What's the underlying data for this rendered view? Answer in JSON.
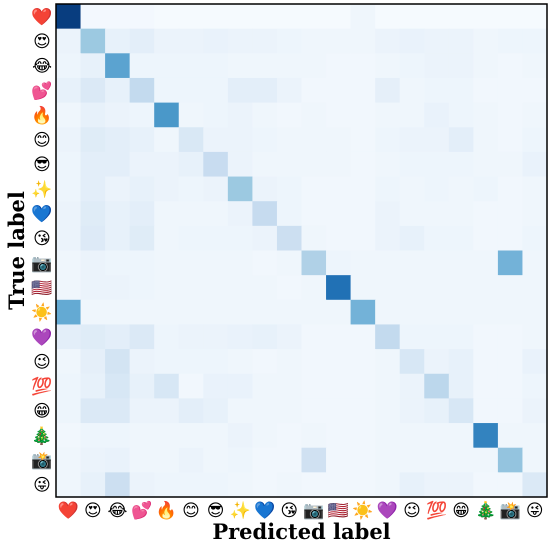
{
  "chart_data": {
    "type": "heatmap",
    "title": "",
    "xlabel": "Predicted label",
    "ylabel": "True label",
    "x_categories": [
      "❤️",
      "😍",
      "😂",
      "💕",
      "🔥",
      "😊",
      "😎",
      "✨",
      "💙",
      "😘",
      "📷",
      "🇺🇸",
      "☀️",
      "💜",
      "😉",
      "💯",
      "😁",
      "🎄",
      "📸",
      "😜"
    ],
    "y_categories": [
      "❤️",
      "😍",
      "😂",
      "💕",
      "🔥",
      "😊",
      "😎",
      "✨",
      "💙",
      "😘",
      "📷",
      "🇺🇸",
      "☀️",
      "💜",
      "😉",
      "💯",
      "😁",
      "🎄",
      "📸",
      "😜"
    ],
    "value_range": [
      0,
      1
    ],
    "colormap": [
      "#f7fbff",
      "#deebf7",
      "#c6dbef",
      "#9ecae1",
      "#6baed6",
      "#4292c6",
      "#2171b5",
      "#08519c",
      "#08306b"
    ],
    "matrix": [
      [
        0.95,
        0.02,
        0.02,
        0.02,
        0.01,
        0.01,
        0.01,
        0.01,
        0.01,
        0.01,
        0.01,
        0.01,
        0.04,
        0.01,
        0.01,
        0.01,
        0.01,
        0.01,
        0.01,
        0.01
      ],
      [
        0.06,
        0.38,
        0.08,
        0.1,
        0.06,
        0.06,
        0.07,
        0.06,
        0.06,
        0.05,
        0.04,
        0.04,
        0.04,
        0.06,
        0.07,
        0.06,
        0.06,
        0.04,
        0.05,
        0.05
      ],
      [
        0.05,
        0.08,
        0.55,
        0.05,
        0.05,
        0.05,
        0.05,
        0.04,
        0.04,
        0.04,
        0.04,
        0.03,
        0.03,
        0.04,
        0.05,
        0.06,
        0.06,
        0.04,
        0.03,
        0.04
      ],
      [
        0.08,
        0.14,
        0.08,
        0.26,
        0.05,
        0.05,
        0.05,
        0.1,
        0.1,
        0.06,
        0.03,
        0.03,
        0.03,
        0.09,
        0.04,
        0.05,
        0.05,
        0.03,
        0.03,
        0.03
      ],
      [
        0.04,
        0.08,
        0.06,
        0.05,
        0.6,
        0.04,
        0.05,
        0.06,
        0.04,
        0.03,
        0.04,
        0.03,
        0.03,
        0.04,
        0.04,
        0.07,
        0.05,
        0.04,
        0.03,
        0.04
      ],
      [
        0.06,
        0.12,
        0.1,
        0.08,
        0.04,
        0.15,
        0.06,
        0.06,
        0.05,
        0.04,
        0.04,
        0.04,
        0.03,
        0.05,
        0.06,
        0.06,
        0.1,
        0.04,
        0.03,
        0.05
      ],
      [
        0.05,
        0.1,
        0.1,
        0.06,
        0.06,
        0.08,
        0.24,
        0.06,
        0.04,
        0.04,
        0.04,
        0.04,
        0.03,
        0.04,
        0.05,
        0.05,
        0.05,
        0.04,
        0.04,
        0.07
      ],
      [
        0.05,
        0.1,
        0.06,
        0.08,
        0.06,
        0.05,
        0.06,
        0.38,
        0.06,
        0.05,
        0.03,
        0.03,
        0.03,
        0.05,
        0.04,
        0.05,
        0.04,
        0.05,
        0.03,
        0.04
      ],
      [
        0.06,
        0.12,
        0.08,
        0.1,
        0.04,
        0.04,
        0.04,
        0.06,
        0.25,
        0.05,
        0.03,
        0.03,
        0.03,
        0.06,
        0.04,
        0.04,
        0.04,
        0.03,
        0.03,
        0.04
      ],
      [
        0.06,
        0.13,
        0.08,
        0.12,
        0.04,
        0.05,
        0.05,
        0.05,
        0.06,
        0.22,
        0.04,
        0.03,
        0.03,
        0.06,
        0.08,
        0.05,
        0.05,
        0.03,
        0.03,
        0.05
      ],
      [
        0.04,
        0.06,
        0.05,
        0.05,
        0.04,
        0.04,
        0.04,
        0.04,
        0.03,
        0.04,
        0.32,
        0.05,
        0.04,
        0.04,
        0.04,
        0.04,
        0.04,
        0.04,
        0.48,
        0.04
      ],
      [
        0.04,
        0.06,
        0.06,
        0.05,
        0.04,
        0.04,
        0.04,
        0.04,
        0.04,
        0.03,
        0.04,
        0.75,
        0.04,
        0.04,
        0.04,
        0.04,
        0.04,
        0.04,
        0.04,
        0.04
      ],
      [
        0.52,
        0.04,
        0.04,
        0.04,
        0.04,
        0.04,
        0.04,
        0.04,
        0.04,
        0.04,
        0.04,
        0.04,
        0.48,
        0.04,
        0.04,
        0.04,
        0.04,
        0.04,
        0.04,
        0.04
      ],
      [
        0.1,
        0.12,
        0.1,
        0.14,
        0.05,
        0.06,
        0.06,
        0.07,
        0.08,
        0.06,
        0.03,
        0.03,
        0.03,
        0.26,
        0.05,
        0.05,
        0.05,
        0.03,
        0.03,
        0.04
      ],
      [
        0.04,
        0.09,
        0.18,
        0.06,
        0.05,
        0.05,
        0.05,
        0.04,
        0.03,
        0.04,
        0.03,
        0.03,
        0.03,
        0.04,
        0.16,
        0.06,
        0.08,
        0.03,
        0.03,
        0.07
      ],
      [
        0.05,
        0.08,
        0.16,
        0.08,
        0.16,
        0.03,
        0.07,
        0.07,
        0.04,
        0.04,
        0.03,
        0.03,
        0.03,
        0.04,
        0.06,
        0.28,
        0.08,
        0.03,
        0.03,
        0.05
      ],
      [
        0.05,
        0.14,
        0.14,
        0.06,
        0.06,
        0.1,
        0.08,
        0.04,
        0.04,
        0.04,
        0.03,
        0.03,
        0.03,
        0.04,
        0.06,
        0.08,
        0.16,
        0.03,
        0.03,
        0.06
      ],
      [
        0.03,
        0.05,
        0.05,
        0.04,
        0.04,
        0.04,
        0.04,
        0.06,
        0.04,
        0.03,
        0.04,
        0.03,
        0.03,
        0.04,
        0.04,
        0.04,
        0.04,
        0.68,
        0.04,
        0.04
      ],
      [
        0.04,
        0.06,
        0.07,
        0.04,
        0.04,
        0.06,
        0.04,
        0.05,
        0.03,
        0.03,
        0.2,
        0.03,
        0.03,
        0.04,
        0.04,
        0.04,
        0.04,
        0.04,
        0.4,
        0.04
      ],
      [
        0.04,
        0.08,
        0.22,
        0.06,
        0.05,
        0.05,
        0.05,
        0.04,
        0.03,
        0.04,
        0.03,
        0.03,
        0.03,
        0.04,
        0.08,
        0.06,
        0.06,
        0.03,
        0.03,
        0.14
      ]
    ]
  }
}
